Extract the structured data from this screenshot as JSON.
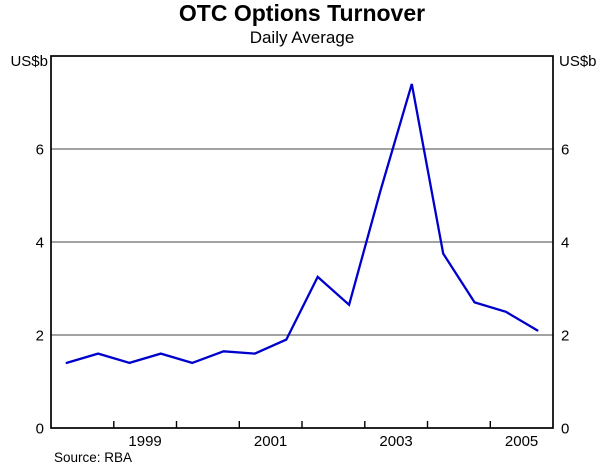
{
  "header": {
    "title": "OTC Options Turnover",
    "subtitle": "Daily Average"
  },
  "source": "Source: RBA",
  "chart_data": {
    "type": "line",
    "title": "OTC Options Turnover",
    "subtitle": "Daily Average",
    "unit_left": "US$b",
    "unit_right": "US$b",
    "x": [
      1998.25,
      1998.75,
      1999.25,
      1999.75,
      2000.25,
      2000.75,
      2001.25,
      2001.75,
      2002.25,
      2002.75,
      2003.25,
      2003.75,
      2004.25,
      2004.75,
      2005.25,
      2005.75
    ],
    "periods": [
      "1998 H1",
      "1998 H2",
      "1999 H1",
      "1999 H2",
      "2000 H1",
      "2000 H2",
      "2001 H1",
      "2001 H2",
      "2002 H1",
      "2002 H2",
      "2003 H1",
      "2003 H2",
      "2004 H1",
      "2004 H2",
      "2005 H1",
      "2005 H2"
    ],
    "series": [
      {
        "values": [
          1.4,
          1.6,
          1.4,
          1.6,
          1.4,
          1.65,
          1.6,
          1.9,
          3.25,
          2.65,
          5.1,
          7.4,
          3.75,
          2.7,
          2.5,
          2.1
        ]
      }
    ],
    "xlim": [
      1998,
      2006
    ],
    "ylim": [
      0,
      8
    ],
    "yticks": [
      0,
      2,
      4,
      6
    ],
    "gridlines": [
      2,
      4,
      6
    ],
    "xticks": [
      1999,
      2000,
      2001,
      2002,
      2003,
      2004,
      2005
    ],
    "xtick_labels": [
      {
        "label": "1999",
        "x": 1999.5
      },
      {
        "label": "2001",
        "x": 2001.5
      },
      {
        "label": "2003",
        "x": 2003.5
      },
      {
        "label": "2005",
        "x": 2005.5
      }
    ],
    "grid": "horizontal",
    "legend": "none",
    "colors": {
      "line": "#0000CC",
      "gridline": "#444444",
      "axis": "#000000",
      "text": "#000000",
      "background": "#FFFFFF"
    }
  }
}
